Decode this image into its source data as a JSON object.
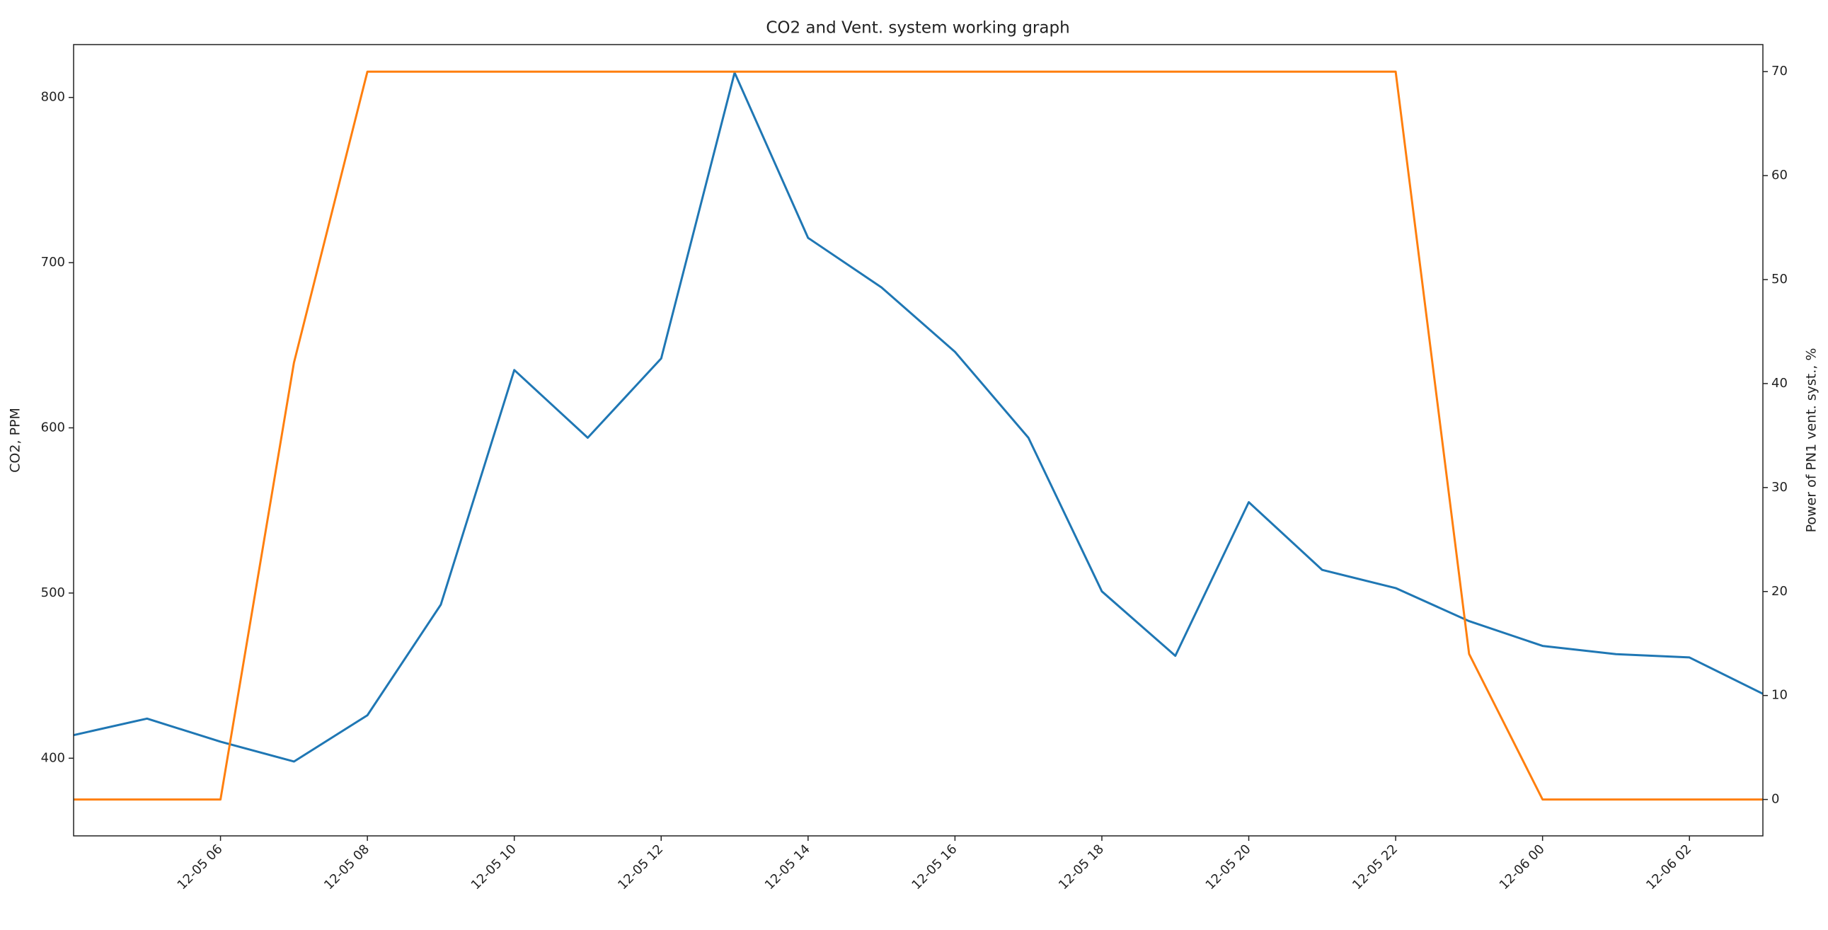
{
  "chart_data": {
    "type": "line",
    "title": "CO2 and Vent. system working graph",
    "y_label": "CO2, PPM",
    "y2_label": "Power of PN1 vent. syst., %",
    "x": [
      "12-05 04",
      "12-05 05",
      "12-05 06",
      "12-05 07",
      "12-05 08",
      "12-05 09",
      "12-05 10",
      "12-05 11",
      "12-05 12",
      "12-05 13",
      "12-05 14",
      "12-05 15",
      "12-05 16",
      "12-05 17",
      "12-05 18",
      "12-05 19",
      "12-05 20",
      "12-05 21",
      "12-05 22",
      "12-05 23",
      "12-06 00",
      "12-06 01",
      "12-06 02",
      "12-06 03"
    ],
    "series": [
      {
        "color": "#1f77b4",
        "values": [
          414,
          424,
          410,
          398,
          426,
          493,
          635,
          594,
          642,
          815,
          715,
          685,
          646,
          594,
          501,
          462,
          555,
          514,
          503,
          483,
          468,
          463,
          461,
          439
        ]
      },
      {
        "color": "#ff7f0e",
        "axis": "y2",
        "values": [
          0,
          0,
          0,
          42,
          70,
          70,
          70,
          70,
          70,
          70,
          70,
          70,
          70,
          70,
          70,
          70,
          70,
          70,
          70,
          14,
          0,
          0,
          0,
          0
        ]
      }
    ],
    "xlim": [
      "12-05 04",
      "12-06 03"
    ],
    "xticks": [
      "12-05 06",
      "12-05 08",
      "12-05 10",
      "12-05 12",
      "12-05 14",
      "12-05 16",
      "12-05 18",
      "12-05 20",
      "12-05 22",
      "12-06 00",
      "12-06 02"
    ],
    "ylim": [
      353,
      832
    ],
    "yticks": [
      400,
      500,
      600,
      700,
      800
    ],
    "y2lim": [
      -3.5,
      72.6
    ],
    "y2ticks": [
      0,
      10,
      20,
      30,
      40,
      50,
      60,
      70
    ]
  }
}
